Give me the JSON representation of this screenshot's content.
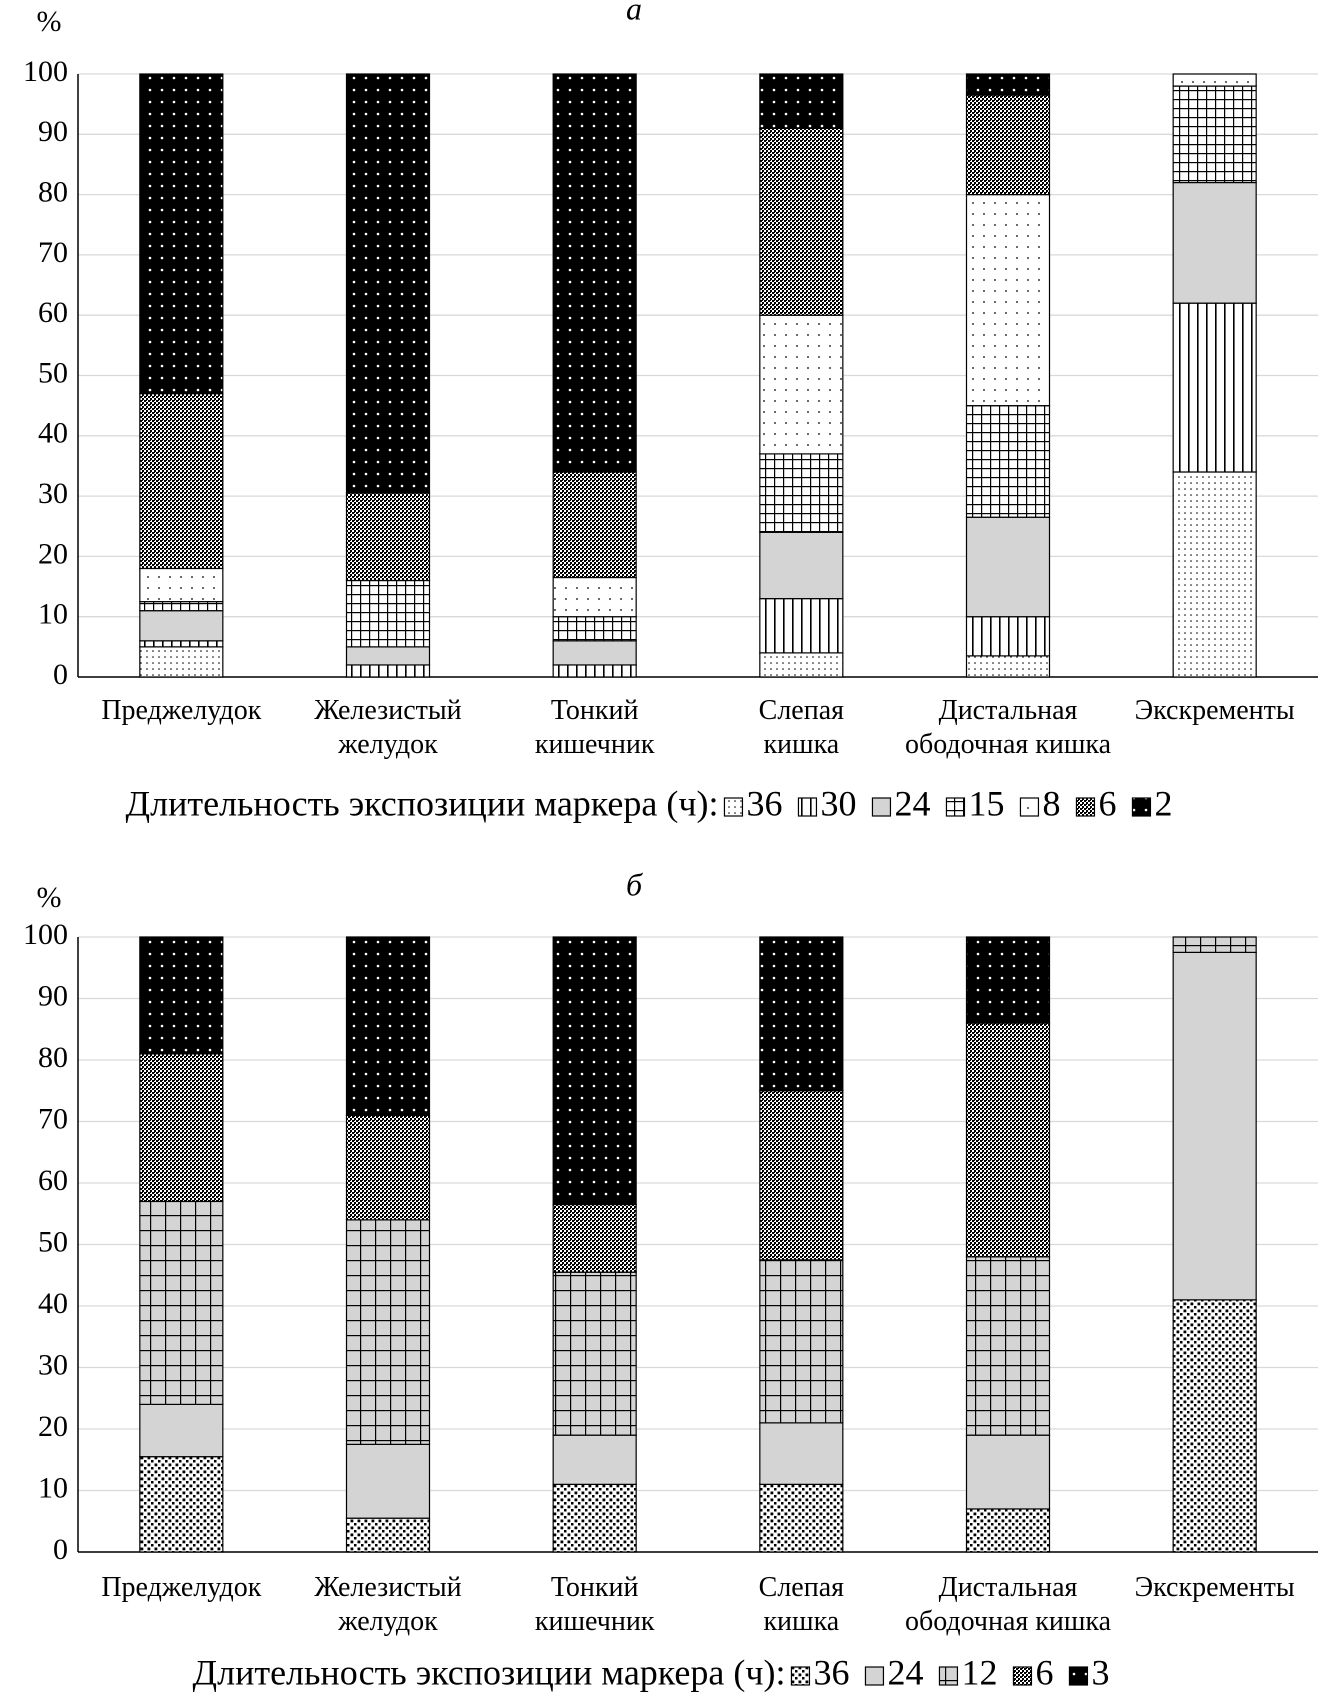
{
  "chart_data": [
    {
      "type": "bar",
      "stacked": true,
      "title": "а",
      "y_label": "%",
      "categories": [
        "Преджелудок",
        "Железистый\nжелудок",
        "Тонкий\nкишечник",
        "Слепая\nкишка",
        "Дистальная\nободочная кишка",
        "Экскременты"
      ],
      "ylim": [
        0,
        100
      ],
      "yticks": [
        0,
        10,
        20,
        30,
        40,
        50,
        60,
        70,
        80,
        90,
        100
      ],
      "grid": true,
      "legend_title": "Длительность экспозиции маркера (ч):",
      "series": [
        {
          "name": "36",
          "color": "#ffffff",
          "pattern": "fine-dots",
          "values": [
            5,
            0,
            0,
            4,
            3.5,
            34
          ]
        },
        {
          "name": "30",
          "color": "#ffffff",
          "pattern": "vertical-lines",
          "values": [
            1,
            2,
            2,
            9,
            6.5,
            28
          ]
        },
        {
          "name": "24",
          "color": "#d4d4d4",
          "pattern": "none",
          "values": [
            5,
            3,
            4,
            11,
            16.5,
            20
          ]
        },
        {
          "name": "15",
          "color": "#ffffff",
          "pattern": "grid",
          "values": [
            1.5,
            11,
            4,
            13,
            18.5,
            16
          ]
        },
        {
          "name": "8",
          "color": "#ffffff",
          "pattern": "sparse-dots",
          "values": [
            5.5,
            0,
            6.5,
            23,
            35,
            2
          ]
        },
        {
          "name": "6",
          "color": "#ffffff",
          "pattern": "checker",
          "values": [
            29,
            14.5,
            17.5,
            31,
            16.5,
            0
          ]
        },
        {
          "name": "2",
          "color": "#000000",
          "pattern": "white-dots",
          "values": [
            53,
            69.5,
            66,
            9,
            3.5,
            0
          ]
        }
      ]
    },
    {
      "type": "bar",
      "stacked": true,
      "title": "б",
      "y_label": "%",
      "categories": [
        "Преджелудок",
        "Железистый\nжелудок",
        "Тонкий\nкишечник",
        "Слепая\nкишка",
        "Дистальная\nободочная кишка",
        "Экскременты"
      ],
      "ylim": [
        0,
        100
      ],
      "yticks": [
        0,
        10,
        20,
        30,
        40,
        50,
        60,
        70,
        80,
        90,
        100
      ],
      "grid": true,
      "legend_title": "Длительность экспозиции маркера (ч):",
      "series": [
        {
          "name": "36",
          "color": "#ffffff",
          "pattern": "squares",
          "values": [
            15.5,
            5.5,
            11,
            11,
            7,
            41
          ]
        },
        {
          "name": "24",
          "color": "#d4d4d4",
          "pattern": "none",
          "values": [
            8.5,
            12,
            8,
            10,
            12,
            56.5
          ]
        },
        {
          "name": "12",
          "color": "#d4d4d4",
          "pattern": "big-grid",
          "values": [
            33,
            36.5,
            26.5,
            26.5,
            29,
            2.5
          ]
        },
        {
          "name": "6",
          "color": "#ffffff",
          "pattern": "checker",
          "values": [
            24,
            17,
            11,
            27.5,
            38,
            0
          ]
        },
        {
          "name": "3",
          "color": "#000000",
          "pattern": "white-dots",
          "values": [
            19,
            29,
            43.5,
            25,
            14,
            0
          ]
        }
      ]
    }
  ]
}
